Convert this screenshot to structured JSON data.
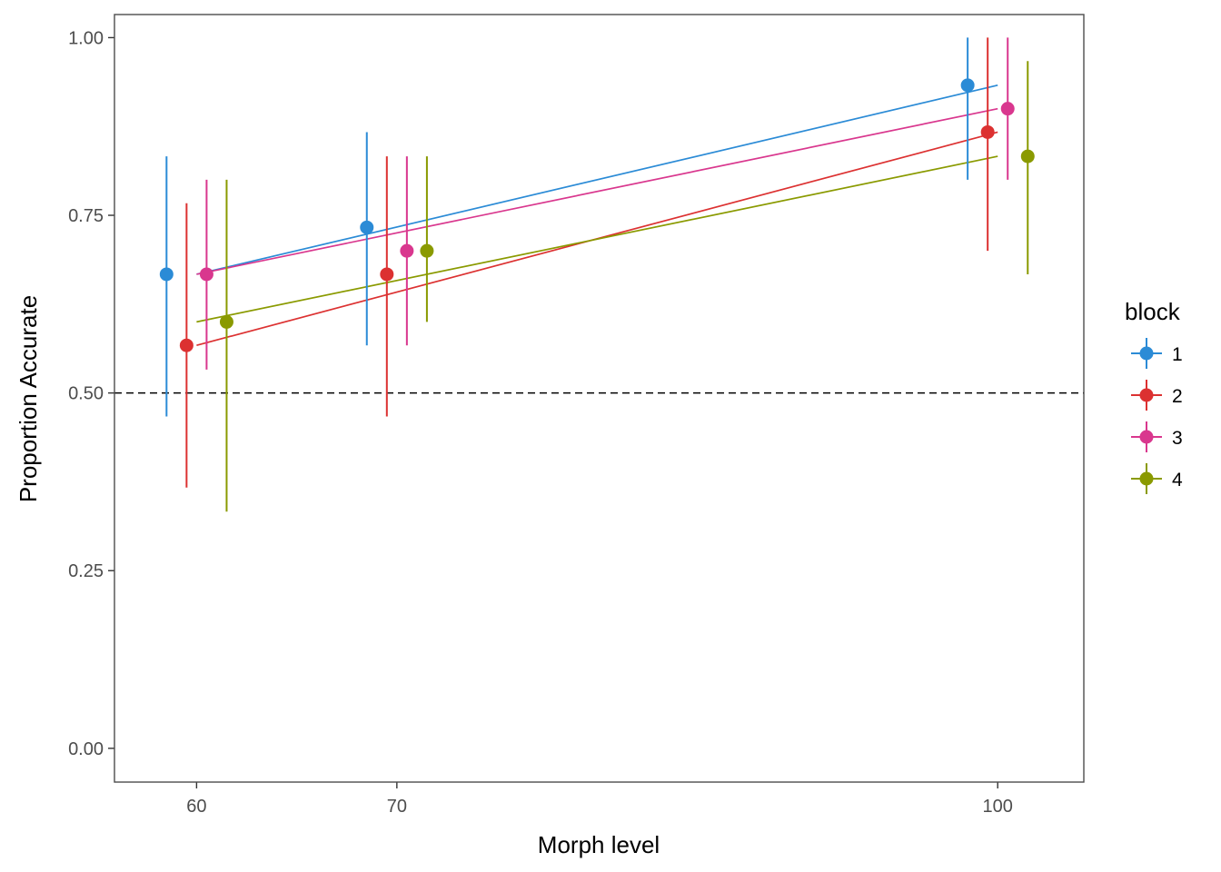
{
  "chart_data": {
    "type": "scatter",
    "xlabel": "Morph level",
    "ylabel": "Proportion Accurate",
    "xlim": [
      55.9,
      104.3
    ],
    "ylim": [
      -0.0475,
      1.0325
    ],
    "x_ticks": [
      60,
      70,
      100
    ],
    "y_ticks": [
      0.0,
      0.25,
      0.5,
      0.75,
      1.0
    ],
    "x_tick_labels": [
      "60",
      "70",
      "100"
    ],
    "y_tick_labels": [
      "0.00",
      "0.25",
      "0.50",
      "0.75",
      "1.00"
    ],
    "reference_line": {
      "y": 0.5,
      "style": "dashed",
      "color": "#000000"
    },
    "legend": {
      "title": "block",
      "position": "right"
    },
    "grid": false,
    "dodge_offsets": [
      -1.5,
      -0.5,
      0.5,
      1.5
    ],
    "series": [
      {
        "name": "1",
        "color": "#2B8BD6",
        "points": [
          {
            "x": 60,
            "y": 0.667,
            "ymin": 0.467,
            "ymax": 0.833
          },
          {
            "x": 70,
            "y": 0.733,
            "ymin": 0.567,
            "ymax": 0.867
          },
          {
            "x": 100,
            "y": 0.933,
            "ymin": 0.8,
            "ymax": 1.0
          }
        ],
        "fit": {
          "x": [
            60,
            100
          ],
          "y": [
            0.667,
            0.933
          ]
        }
      },
      {
        "name": "2",
        "color": "#DC3131",
        "points": [
          {
            "x": 60,
            "y": 0.567,
            "ymin": 0.367,
            "ymax": 0.767
          },
          {
            "x": 70,
            "y": 0.667,
            "ymin": 0.467,
            "ymax": 0.833
          },
          {
            "x": 100,
            "y": 0.867,
            "ymin": 0.7,
            "ymax": 1.0
          }
        ],
        "fit": {
          "x": [
            60,
            100
          ],
          "y": [
            0.567,
            0.867
          ]
        }
      },
      {
        "name": "3",
        "color": "#D9378E",
        "points": [
          {
            "x": 60,
            "y": 0.667,
            "ymin": 0.533,
            "ymax": 0.8
          },
          {
            "x": 70,
            "y": 0.7,
            "ymin": 0.567,
            "ymax": 0.833
          },
          {
            "x": 100,
            "y": 0.9,
            "ymin": 0.8,
            "ymax": 1.0
          }
        ],
        "fit": {
          "x": [
            60,
            100
          ],
          "y": [
            0.667,
            0.9
          ]
        }
      },
      {
        "name": "4",
        "color": "#8A9A00",
        "points": [
          {
            "x": 60,
            "y": 0.6,
            "ymin": 0.333,
            "ymax": 0.8
          },
          {
            "x": 70,
            "y": 0.7,
            "ymin": 0.6,
            "ymax": 0.833
          },
          {
            "x": 100,
            "y": 0.833,
            "ymin": 0.667,
            "ymax": 0.967
          }
        ],
        "fit": {
          "x": [
            60,
            100
          ],
          "y": [
            0.6,
            0.833
          ]
        }
      }
    ]
  }
}
